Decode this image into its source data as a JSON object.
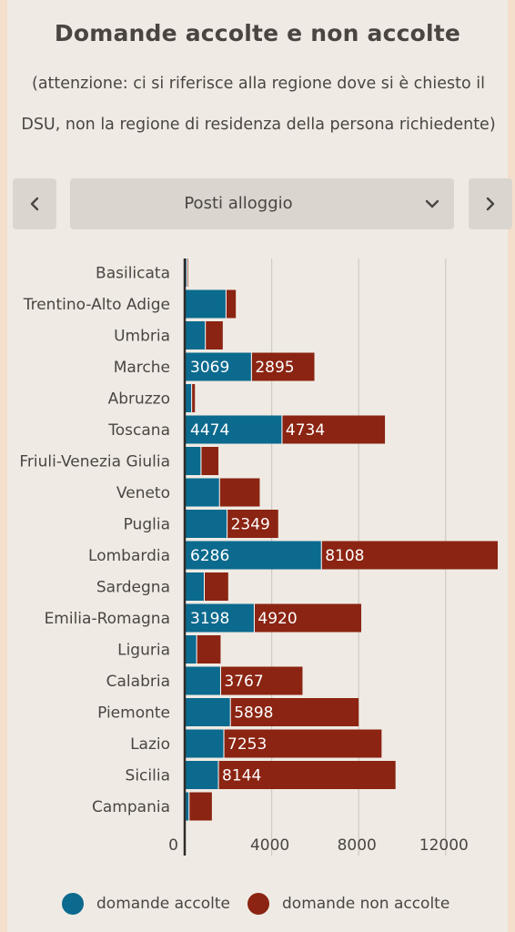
{
  "title": "Domande accolte e non accolte",
  "subtitle_line1": "(attenzione: ci si riferisce alla regione dove si è chiesto il",
  "subtitle_line2": "DSU, non la regione di residenza della persona richiedente)",
  "nav": {
    "prev_icon": "chevron-left-icon",
    "next_icon": "chevron-right-icon"
  },
  "select": {
    "value": "Posti alloggio",
    "icon": "chevron-down-icon"
  },
  "legend": {
    "accolte": "domande accolte",
    "non_accolte": "domande non accolte"
  },
  "colors": {
    "accolte": "#0b6a8e",
    "non_accolte": "#8b2412",
    "grid": "#cfcac2",
    "text": "#4a4540"
  },
  "chart_data": {
    "type": "bar",
    "orientation": "horizontal",
    "stacked": true,
    "title": "",
    "xlabel": "",
    "ylabel": "",
    "xlim": [
      0,
      14500
    ],
    "xticks": [
      0,
      4000,
      8000,
      12000
    ],
    "grid": true,
    "legend_position": "bottom",
    "categories": [
      "Basilicata",
      "Trentino-Alto Adige",
      "Umbria",
      "Marche",
      "Abruzzo",
      "Toscana",
      "Friuli-Venezia Giulia",
      "Veneto",
      "Puglia",
      "Lombardia",
      "Sardegna",
      "Emilia-Romagna",
      "Liguria",
      "Calabria",
      "Piemonte",
      "Lazio",
      "Sicilia",
      "Campania"
    ],
    "series": [
      {
        "name": "domande accolte",
        "values": [
          100,
          1900,
          950,
          3069,
          320,
          4474,
          750,
          1600,
          1950,
          6286,
          900,
          3198,
          550,
          1650,
          2100,
          1800,
          1550,
          200
        ],
        "labels": [
          "",
          "",
          "",
          "3069",
          "",
          "4474",
          "",
          "",
          "",
          "6286",
          "",
          "3198",
          "",
          "",
          "",
          "",
          "",
          ""
        ]
      },
      {
        "name": "domande non accolte",
        "values": [
          50,
          450,
          800,
          2895,
          150,
          4734,
          800,
          1850,
          2349,
          8108,
          1100,
          4920,
          1100,
          3767,
          5898,
          7253,
          8144,
          1050
        ],
        "labels": [
          "",
          "",
          "",
          "2895",
          "",
          "4734",
          "",
          "",
          "2349",
          "8108",
          "",
          "4920",
          "",
          "3767",
          "5898",
          "7253",
          "8144",
          ""
        ]
      }
    ]
  }
}
